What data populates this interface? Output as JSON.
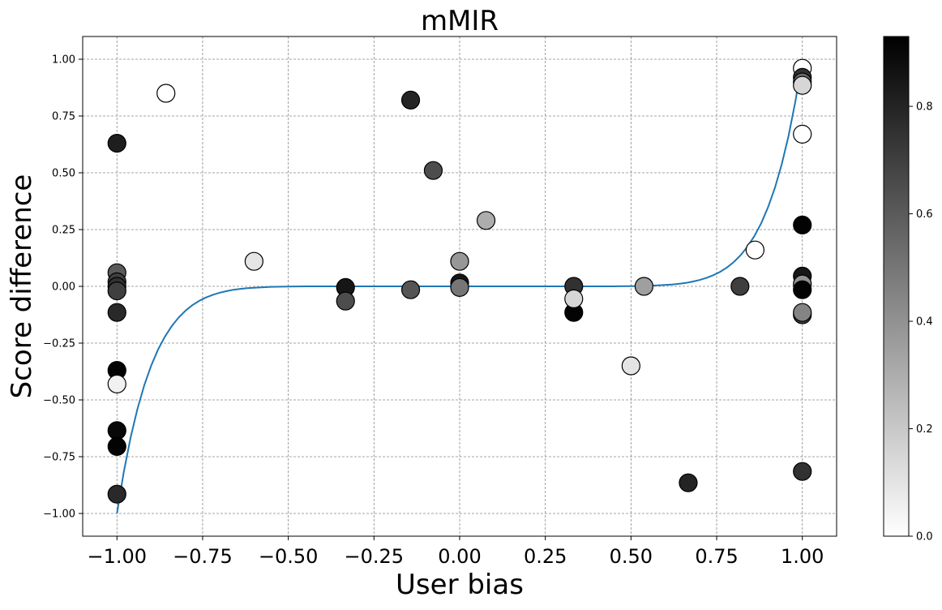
{
  "chart_data": {
    "type": "scatter",
    "title": "mMIR",
    "xlabel": "User bias",
    "ylabel": "Score difference",
    "xlim": [
      -1.1,
      1.1
    ],
    "ylim": [
      -1.1,
      1.1
    ],
    "grid": true,
    "x_ticks": [
      -1.0,
      -0.75,
      -0.5,
      -0.25,
      0.0,
      0.25,
      0.5,
      0.75,
      1.0
    ],
    "x_tick_labels": [
      "−1.00",
      "−0.75",
      "−0.50",
      "−0.25",
      "0.00",
      "0.25",
      "0.50",
      "0.75",
      "1.00"
    ],
    "y_ticks": [
      1.0,
      0.75,
      0.5,
      0.25,
      0.0,
      -0.25,
      -0.5,
      -0.75,
      -1.0
    ],
    "y_tick_labels": [
      "1.00",
      "0.75",
      "0.50",
      "0.25",
      "0.00",
      "−0.25",
      "−0.50",
      "−0.75",
      "−1.00"
    ],
    "colorbar": {
      "colormap": "Greys",
      "range": [
        0.0,
        0.93
      ],
      "ticks": [
        0.0,
        0.2,
        0.4,
        0.6,
        0.8
      ],
      "tick_labels": [
        "0.0",
        "0.2",
        "0.4",
        "0.6",
        "0.8"
      ],
      "low_color": "#ffffff",
      "high_color": "#000000"
    },
    "points": [
      {
        "x": -1.0,
        "y": 0.63,
        "c": 0.82
      },
      {
        "x": -1.0,
        "y": 0.06,
        "c": 0.6
      },
      {
        "x": -1.0,
        "y": 0.02,
        "c": 0.7
      },
      {
        "x": -1.0,
        "y": 0.0,
        "c": 0.75
      },
      {
        "x": -1.0,
        "y": -0.02,
        "c": 0.7
      },
      {
        "x": -1.0,
        "y": -0.115,
        "c": 0.78
      },
      {
        "x": -1.0,
        "y": -0.37,
        "c": 0.92
      },
      {
        "x": -1.0,
        "y": -0.43,
        "c": 0.05
      },
      {
        "x": -1.0,
        "y": -0.635,
        "c": 0.9
      },
      {
        "x": -1.0,
        "y": -0.705,
        "c": 0.92
      },
      {
        "x": -1.0,
        "y": -0.915,
        "c": 0.78
      },
      {
        "x": -0.857,
        "y": 0.85,
        "c": 0.0
      },
      {
        "x": -0.6,
        "y": 0.11,
        "c": 0.1
      },
      {
        "x": -0.333,
        "y": -0.005,
        "c": 0.85
      },
      {
        "x": -0.333,
        "y": -0.065,
        "c": 0.65
      },
      {
        "x": -0.143,
        "y": 0.82,
        "c": 0.8
      },
      {
        "x": -0.143,
        "y": -0.015,
        "c": 0.62
      },
      {
        "x": -0.077,
        "y": 0.51,
        "c": 0.65
      },
      {
        "x": 0.0,
        "y": 0.11,
        "c": 0.38
      },
      {
        "x": 0.0,
        "y": 0.015,
        "c": 0.85
      },
      {
        "x": 0.0,
        "y": -0.005,
        "c": 0.5
      },
      {
        "x": 0.077,
        "y": 0.29,
        "c": 0.3
      },
      {
        "x": 0.333,
        "y": 0.0,
        "c": 0.75
      },
      {
        "x": 0.333,
        "y": -0.115,
        "c": 0.92
      },
      {
        "x": 0.333,
        "y": -0.055,
        "c": 0.15
      },
      {
        "x": 0.5,
        "y": -0.35,
        "c": 0.1
      },
      {
        "x": 0.538,
        "y": 0.0,
        "c": 0.35
      },
      {
        "x": 0.667,
        "y": -0.865,
        "c": 0.8
      },
      {
        "x": 0.818,
        "y": 0.0,
        "c": 0.7
      },
      {
        "x": 0.862,
        "y": 0.16,
        "c": 0.0
      },
      {
        "x": 1.0,
        "y": 0.96,
        "c": 0.0
      },
      {
        "x": 1.0,
        "y": 0.92,
        "c": 0.75
      },
      {
        "x": 1.0,
        "y": 0.9,
        "c": 0.55
      },
      {
        "x": 1.0,
        "y": 0.885,
        "c": 0.15
      },
      {
        "x": 1.0,
        "y": 0.67,
        "c": 0.0
      },
      {
        "x": 1.0,
        "y": 0.27,
        "c": 0.92
      },
      {
        "x": 1.0,
        "y": 0.045,
        "c": 0.85
      },
      {
        "x": 1.0,
        "y": 0.01,
        "c": 0.4
      },
      {
        "x": 1.0,
        "y": -0.015,
        "c": 0.92
      },
      {
        "x": 1.0,
        "y": -0.125,
        "c": 0.7
      },
      {
        "x": 1.0,
        "y": -0.115,
        "c": 0.45
      },
      {
        "x": 1.0,
        "y": -0.815,
        "c": 0.75
      }
    ],
    "fit_curve": {
      "color": "#1f77b4",
      "x": [
        -1.0,
        -0.98,
        -0.96,
        -0.94,
        -0.92,
        -0.9,
        -0.88,
        -0.86,
        -0.84,
        -0.82,
        -0.8,
        -0.78,
        -0.76,
        -0.74,
        -0.72,
        -0.7,
        -0.68,
        -0.66,
        -0.64,
        -0.62,
        -0.6,
        -0.55,
        -0.5,
        -0.45,
        -0.4,
        -0.3,
        -0.2,
        -0.1,
        0.0,
        0.1,
        0.2,
        0.3,
        0.4,
        0.45,
        0.5,
        0.55,
        0.6,
        0.62,
        0.64,
        0.66,
        0.68,
        0.7,
        0.72,
        0.74,
        0.76,
        0.78,
        0.8,
        0.82,
        0.84,
        0.86,
        0.88,
        0.9,
        0.92,
        0.94,
        0.96,
        0.98,
        1.0
      ],
      "y": [
        -1.0,
        -0.817,
        -0.664,
        -0.539,
        -0.434,
        -0.349,
        -0.278,
        -0.221,
        -0.175,
        -0.137,
        -0.107,
        -0.083,
        -0.064,
        -0.049,
        -0.037,
        -0.028,
        -0.021,
        -0.015,
        -0.011,
        -0.008,
        -0.006,
        -0.002,
        -0.001,
        0.0,
        0.0,
        0.0,
        0.0,
        0.0,
        0.0,
        0.0,
        0.0,
        0.0,
        0.0,
        0.0,
        0.001,
        0.002,
        0.006,
        0.008,
        0.011,
        0.015,
        0.021,
        0.028,
        0.037,
        0.049,
        0.064,
        0.083,
        0.107,
        0.137,
        0.175,
        0.221,
        0.278,
        0.349,
        0.434,
        0.539,
        0.664,
        0.817,
        1.0
      ]
    }
  }
}
